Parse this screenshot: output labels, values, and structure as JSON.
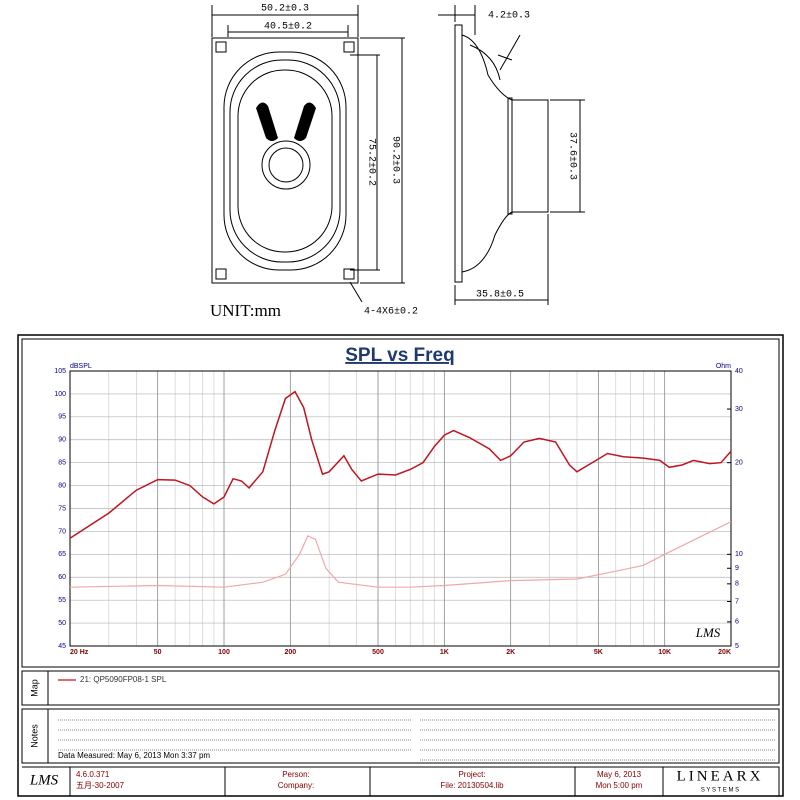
{
  "drawing": {
    "width_outer": "50.2±0.3",
    "width_inner": "40.5±0.2",
    "height_inner": "75.2±0.2",
    "height_outer": "90.2±0.3",
    "unit": "UNIT:mm",
    "holes": "4-4X6±0.2",
    "flange": "4.2±0.3",
    "magnet": "37.6±0.3",
    "depth": "35.8±0.5"
  },
  "chart_data": {
    "type": "line",
    "title": "SPL vs Freq",
    "ylabel": "dBSPL",
    "y2label": "Ohm",
    "xscale": "log",
    "y2scale": "log",
    "grid": true,
    "xlim": [
      20,
      20000
    ],
    "xticks": [
      {
        "value": 20,
        "label": "20 Hz"
      },
      50,
      100,
      200,
      500,
      {
        "value": 1000,
        "label": "1K"
      },
      {
        "value": 2000,
        "label": "2K"
      },
      {
        "value": 5000,
        "label": "5K"
      },
      {
        "value": 10000,
        "label": "10K"
      },
      {
        "value": 20000,
        "label": "20K"
      }
    ],
    "ylim": [
      45,
      105
    ],
    "yticks": [
      45,
      50,
      55,
      60,
      65,
      70,
      75,
      80,
      85,
      90,
      95,
      100,
      105
    ],
    "y2lim": [
      5,
      40
    ],
    "y2ticks": [
      5,
      6,
      7,
      8,
      9,
      10,
      20,
      30,
      40
    ],
    "series": [
      {
        "name": "21: QP5090FP08-1 SPL",
        "color": "#c0141e",
        "x": [
          20,
          30,
          40,
          50,
          60,
          70,
          80,
          90,
          100,
          110,
          120,
          130,
          150,
          170,
          190,
          210,
          230,
          250,
          280,
          300,
          350,
          380,
          420,
          500,
          600,
          700,
          800,
          900,
          1000,
          1100,
          1300,
          1600,
          1800,
          2000,
          2300,
          2700,
          3200,
          3700,
          4000,
          4500,
          5500,
          6500,
          8000,
          9500,
          10500,
          12000,
          13500,
          16000,
          18000,
          20000
        ],
        "values": [
          68.5,
          74,
          79,
          81.3,
          81.2,
          80,
          77.5,
          76,
          77.5,
          81.5,
          81,
          79.5,
          83,
          92,
          99,
          100.5,
          97,
          90,
          82.5,
          83,
          86.5,
          83.5,
          81,
          82.5,
          82.3,
          83.5,
          85,
          88.5,
          91,
          92,
          90.5,
          88,
          85.5,
          86.5,
          89.5,
          90.3,
          89.5,
          84.5,
          83,
          84.5,
          87,
          86.3,
          86,
          85.5,
          84,
          84.5,
          85.5,
          84.8,
          85,
          87.5
        ]
      },
      {
        "color": "#f0a8a8",
        "axis": "y2",
        "x": [
          20,
          50,
          100,
          150,
          190,
          220,
          240,
          260,
          290,
          330,
          500,
          700,
          1000,
          2000,
          4000,
          6000,
          8000,
          10000,
          20000
        ],
        "values": [
          7.8,
          7.9,
          7.8,
          8.1,
          8.6,
          10,
          11.5,
          11.2,
          9,
          8.1,
          7.8,
          7.8,
          7.9,
          8.2,
          8.3,
          8.8,
          9.2,
          10,
          12.8
        ]
      }
    ],
    "watermark": "LMS"
  },
  "sections": {
    "map": "Map",
    "notes": "Notes",
    "measured": "Data Measured: May 6, 2013  Mon  3:37 pm"
  },
  "footer": {
    "logo": "LMS",
    "version": "4.6.0.371",
    "build": "五月-30-2007",
    "person": "Person:",
    "company": "Company:",
    "project": "Project:",
    "file": "File: 20130504.lib",
    "date": "May 6, 2013",
    "time": "Mon  5:00 pm",
    "brand": "LINEARX",
    "brand_sub": "S Y S T E M S"
  }
}
